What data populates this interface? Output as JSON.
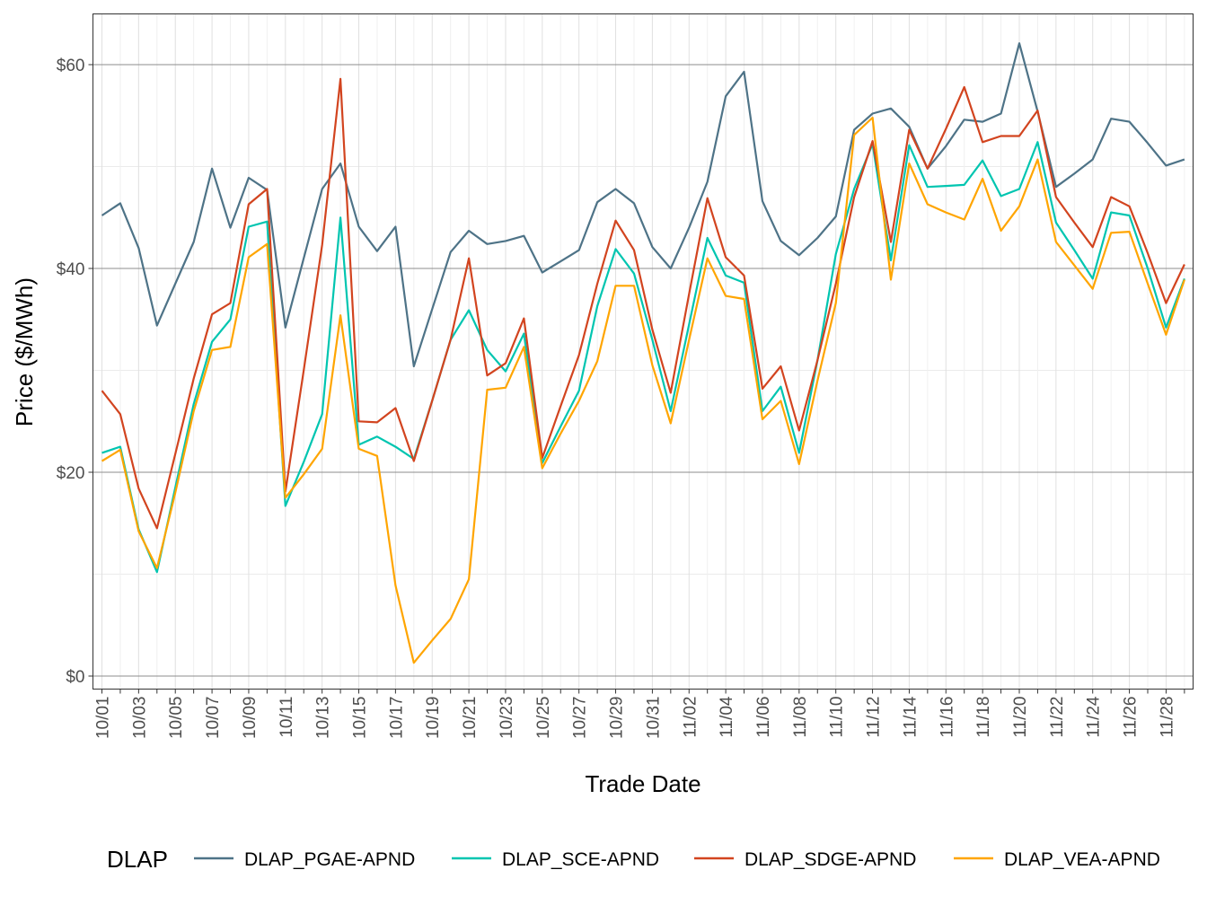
{
  "chart_data": {
    "type": "line",
    "xlabel": "Trade Date",
    "ylabel": "Price ($/MWh)",
    "ylim": [
      -1.3,
      65
    ],
    "y_ticks": [
      0,
      20,
      40,
      60
    ],
    "y_tick_labels": [
      "$0",
      "$20",
      "$40",
      "$60"
    ],
    "grid": true,
    "legend_title": "DLAP",
    "legend_position": "bottom",
    "x": [
      "10/01",
      "10/02",
      "10/03",
      "10/04",
      "10/05",
      "10/06",
      "10/07",
      "10/08",
      "10/09",
      "10/10",
      "10/11",
      "10/12",
      "10/13",
      "10/14",
      "10/15",
      "10/16",
      "10/17",
      "10/18",
      "10/19",
      "10/20",
      "10/21",
      "10/22",
      "10/23",
      "10/24",
      "10/25",
      "10/26",
      "10/27",
      "10/28",
      "10/29",
      "10/30",
      "10/31",
      "11/01",
      "11/02",
      "11/03",
      "11/04",
      "11/05",
      "11/06",
      "11/07",
      "11/08",
      "11/09",
      "11/10",
      "11/11",
      "11/12",
      "11/13",
      "11/14",
      "11/15",
      "11/16",
      "11/17",
      "11/18",
      "11/19",
      "11/20",
      "11/21",
      "11/22",
      "11/23",
      "11/24",
      "11/25",
      "11/26",
      "11/27",
      "11/28",
      "11/29"
    ],
    "x_tick_labels": [
      "10/01",
      "10/03",
      "10/05",
      "10/07",
      "10/09",
      "10/11",
      "10/13",
      "10/15",
      "10/17",
      "10/19",
      "10/21",
      "10/23",
      "10/25",
      "10/27",
      "10/29",
      "10/31",
      "11/02",
      "11/04",
      "11/06",
      "11/08",
      "11/10",
      "11/12",
      "11/14",
      "11/16",
      "11/18",
      "11/20",
      "11/22",
      "11/24",
      "11/26",
      "11/28"
    ],
    "series": [
      {
        "name": "DLAP_PGAE-APND",
        "color": "#4E7387",
        "values": [
          45.2,
          46.4,
          42.0,
          34.4,
          38.5,
          42.6,
          49.8,
          44.0,
          48.9,
          47.7,
          34.2,
          41.0,
          47.8,
          50.3,
          44.1,
          41.7,
          44.1,
          30.4,
          36.0,
          41.6,
          43.7,
          42.4,
          42.7,
          43.2,
          39.6,
          40.7,
          41.8,
          46.5,
          47.8,
          46.4,
          42.1,
          40.0,
          44.0,
          48.5,
          56.9,
          59.3,
          46.6,
          42.7,
          41.3,
          43.0,
          45.1,
          53.6,
          55.2,
          55.7,
          53.9,
          49.8,
          52.0,
          54.6,
          54.4,
          55.2,
          62.1,
          55.4,
          48.0,
          49.3,
          50.7,
          54.7,
          54.4,
          52.3,
          50.1,
          50.7
        ]
      },
      {
        "name": "DLAP_SCE-APND",
        "color": "#00C5B0",
        "values": [
          21.9,
          22.5,
          14.4,
          10.2,
          18.5,
          26.7,
          32.8,
          35.0,
          44.1,
          44.6,
          16.7,
          21.0,
          25.7,
          45.0,
          22.7,
          23.5,
          22.5,
          21.3,
          27.0,
          33.0,
          35.9,
          32.0,
          29.9,
          33.6,
          20.9,
          24.5,
          28.0,
          36.3,
          41.9,
          39.5,
          33.0,
          26.0,
          34.5,
          43.0,
          39.3,
          38.6,
          26.0,
          28.4,
          21.9,
          31.0,
          41.4,
          47.8,
          52.2,
          40.8,
          52.1,
          48.0,
          48.1,
          48.2,
          50.6,
          47.1,
          47.8,
          52.4,
          44.5,
          41.8,
          39.0,
          45.5,
          45.2,
          40.0,
          34.2,
          39.0
        ]
      },
      {
        "name": "DLAP_SDGE-APND",
        "color": "#D2441F",
        "values": [
          28.0,
          25.7,
          18.4,
          14.5,
          21.8,
          29.2,
          35.5,
          36.6,
          46.3,
          47.8,
          18.1,
          30.0,
          42.3,
          58.6,
          25.0,
          24.9,
          26.3,
          21.1,
          27.0,
          33.0,
          41.0,
          29.5,
          30.7,
          35.1,
          21.4,
          26.5,
          31.5,
          38.5,
          44.7,
          41.8,
          34.0,
          27.8,
          37.5,
          46.9,
          41.1,
          39.3,
          28.2,
          30.4,
          24.1,
          31.0,
          38.5,
          47.0,
          52.5,
          42.6,
          53.6,
          49.8,
          53.7,
          57.8,
          52.4,
          53.0,
          53.0,
          55.5,
          47.0,
          44.5,
          42.1,
          47.0,
          46.1,
          41.5,
          36.6,
          40.4
        ]
      },
      {
        "name": "DLAP_VEA-APND",
        "color": "#FFA500",
        "values": [
          21.1,
          22.2,
          14.2,
          10.6,
          18.0,
          26.0,
          32.0,
          32.3,
          41.1,
          42.4,
          17.5,
          19.8,
          22.3,
          35.4,
          22.3,
          21.6,
          8.9,
          1.3,
          3.5,
          5.6,
          9.5,
          28.1,
          28.3,
          32.3,
          20.4,
          23.8,
          27.0,
          30.9,
          38.3,
          38.3,
          30.5,
          24.8,
          33.0,
          41.0,
          37.3,
          37.0,
          25.2,
          27.0,
          20.8,
          29.0,
          36.6,
          53.1,
          54.8,
          38.9,
          50.3,
          46.3,
          45.5,
          44.8,
          48.8,
          43.7,
          46.1,
          50.7,
          42.6,
          40.3,
          38.0,
          43.5,
          43.6,
          38.5,
          33.5,
          38.9
        ]
      }
    ]
  }
}
